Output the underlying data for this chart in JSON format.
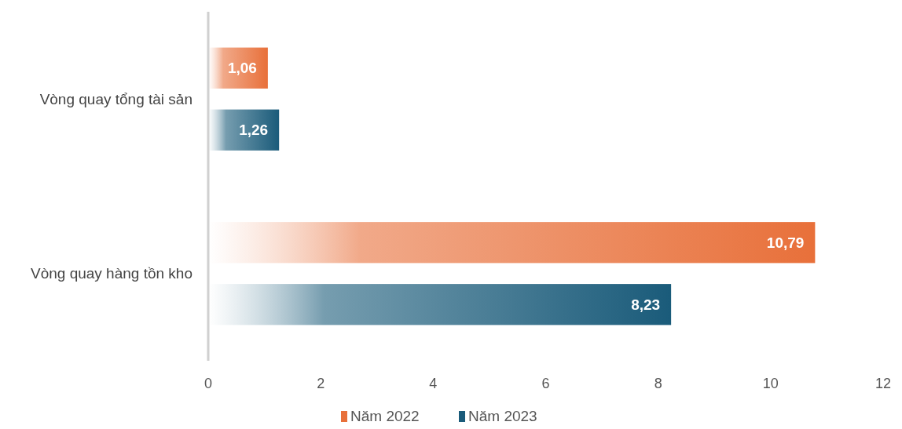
{
  "chart_data": {
    "type": "bar",
    "orientation": "horizontal",
    "categories": [
      "Vòng quay tổng tài sản",
      "Vòng quay hàng tồn kho"
    ],
    "series": [
      {
        "name": "Năm 2022",
        "color": "#e8703a",
        "values": [
          1.06,
          10.79
        ],
        "value_labels": [
          "1,06",
          "10,79"
        ]
      },
      {
        "name": "Năm 2023",
        "color": "#1a5b7a",
        "values": [
          1.26,
          8.23
        ],
        "value_labels": [
          "1,26",
          "8,23"
        ]
      }
    ],
    "xlim": [
      0,
      12
    ],
    "xticks": [
      0,
      2,
      4,
      6,
      8,
      10,
      12
    ],
    "grid": false,
    "legend": "bottom"
  }
}
